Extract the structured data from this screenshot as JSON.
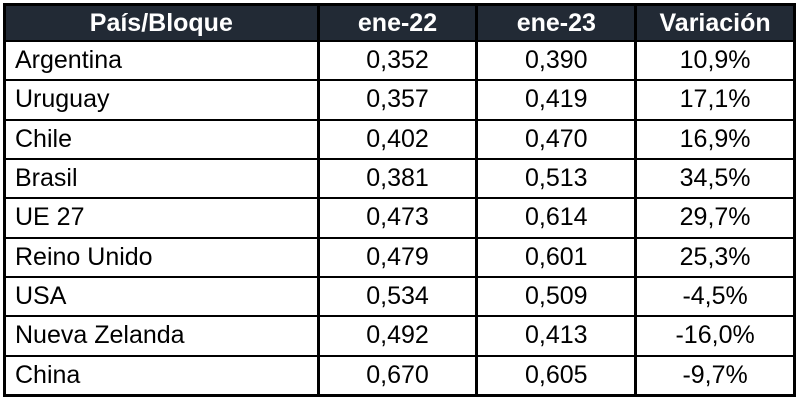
{
  "chart_data": {
    "type": "table",
    "title": "",
    "columns": [
      "País/Bloque",
      "ene-22",
      "ene-23",
      "Variación"
    ],
    "rows": [
      {
        "pais": "Argentina",
        "ene22": "0,352",
        "ene23": "0,390",
        "variacion": "10,9%"
      },
      {
        "pais": "Uruguay",
        "ene22": "0,357",
        "ene23": "0,419",
        "variacion": "17,1%"
      },
      {
        "pais": "Chile",
        "ene22": "0,402",
        "ene23": "0,470",
        "variacion": "16,9%"
      },
      {
        "pais": "Brasil",
        "ene22": "0,381",
        "ene23": "0,513",
        "variacion": "34,5%"
      },
      {
        "pais": "UE 27",
        "ene22": "0,473",
        "ene23": "0,614",
        "variacion": "29,7%"
      },
      {
        "pais": "Reino Unido",
        "ene22": "0,479",
        "ene23": "0,601",
        "variacion": "25,3%"
      },
      {
        "pais": "USA",
        "ene22": "0,534",
        "ene23": "0,509",
        "variacion": "-4,5%"
      },
      {
        "pais": "Nueva Zelanda",
        "ene22": "0,492",
        "ene23": "0,413",
        "variacion": "-16,0%"
      },
      {
        "pais": "China",
        "ene22": "0,670",
        "ene23": "0,605",
        "variacion": "-9,7%"
      }
    ],
    "layout": {
      "grid": "on",
      "header_position": "top",
      "first_column_align": "left",
      "numeric_align": "center",
      "decimal_separator": ","
    }
  },
  "colors": {
    "header_bg": "#222A35",
    "header_text": "#FFFFFF",
    "border": "#000000",
    "row_bg": "#FFFFFF",
    "text": "#000000"
  }
}
